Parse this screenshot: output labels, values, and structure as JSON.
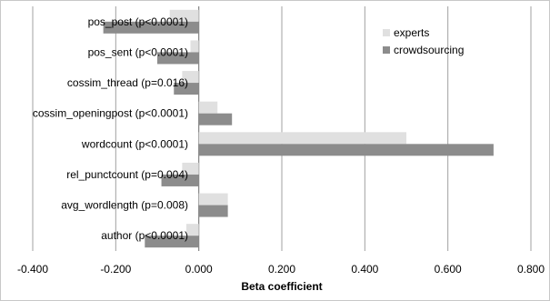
{
  "chart_data": {
    "type": "bar",
    "orientation": "horizontal",
    "title": "",
    "xlabel": "Beta coefficient",
    "ylabel": "",
    "xlim": [
      -0.4,
      0.8
    ],
    "xticks": [
      -0.4,
      -0.2,
      0.0,
      0.2,
      0.4,
      0.6,
      0.8
    ],
    "xtick_labels": [
      "-0.400",
      "-0.200",
      "0.000",
      "0.200",
      "0.400",
      "0.600",
      "0.800"
    ],
    "grid": "vertical",
    "legend_position": "top-right",
    "categories": [
      "pos_post (p<0.0001)",
      "pos_sent (p<0.0001)",
      "cossim_thread (p=0.016)",
      "cossim_openingpost (p<0.0001)",
      "wordcount (p<0.0001)",
      "rel_punctcount (p=0.004)",
      "avg_wordlength (p=0.008)",
      "author (p<0.0001)"
    ],
    "series": [
      {
        "name": "experts",
        "color": "#e0e0e0",
        "values": [
          -0.07,
          -0.02,
          -0.04,
          0.045,
          0.5,
          -0.04,
          0.07,
          -0.03
        ]
      },
      {
        "name": "crowdsourcing",
        "color": "#8c8c8c",
        "values": [
          -0.23,
          -0.1,
          -0.06,
          0.08,
          0.71,
          -0.09,
          0.07,
          -0.13
        ]
      }
    ]
  }
}
